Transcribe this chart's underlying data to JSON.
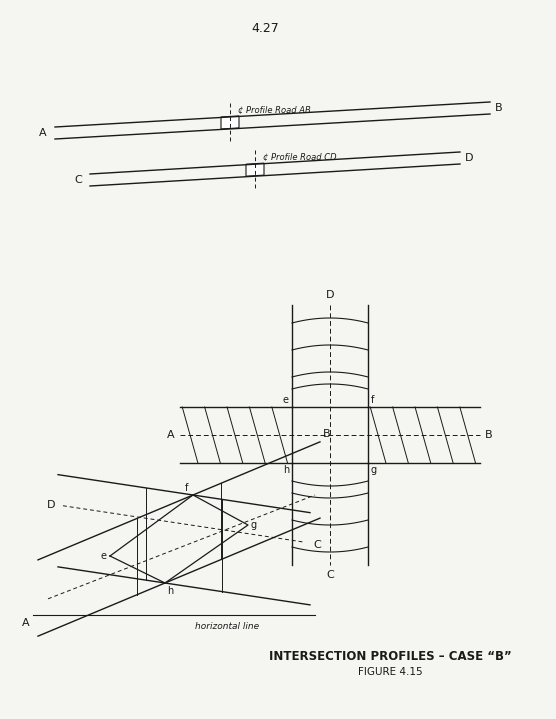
{
  "bg_color": "#f5f5f2",
  "line_color": "#1a1a1a",
  "title_text": "INTERSECTION PROFILES – CASE “B”",
  "subtitle_text": "FIGURE 4.15",
  "page_num": "4.27"
}
